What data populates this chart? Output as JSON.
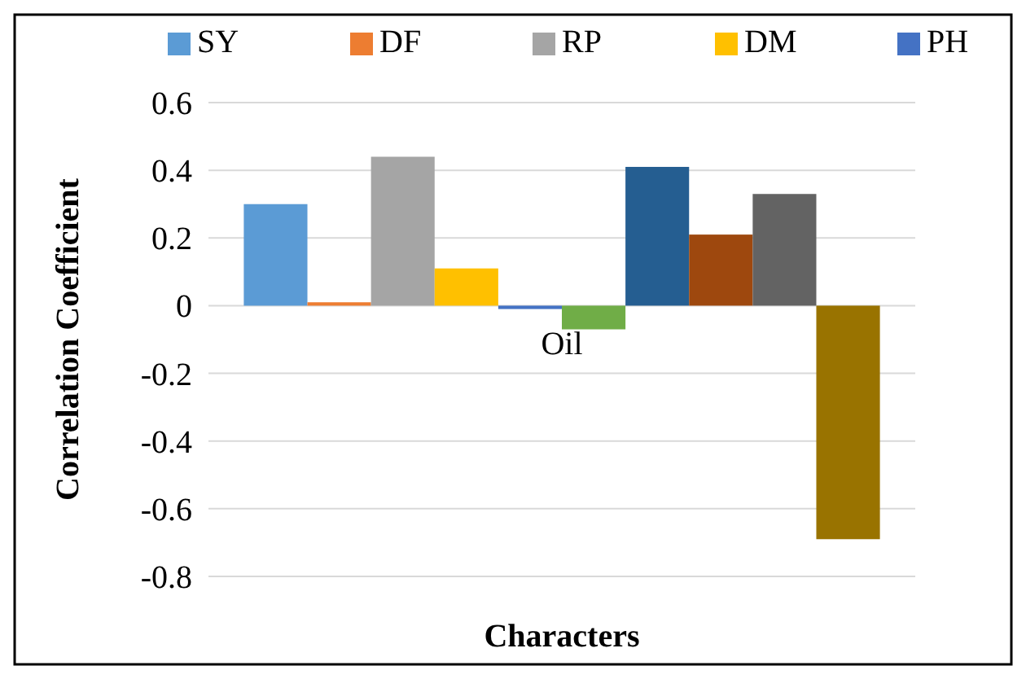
{
  "chart_data": {
    "type": "bar",
    "xlabel": "Characters",
    "ylabel": "Correlation Coefficient",
    "categories": [
      "Oil"
    ],
    "series": [
      {
        "name": "SY",
        "color": "#5b9bd5",
        "values": [
          0.3
        ]
      },
      {
        "name": "DF",
        "color": "#ed7d31",
        "values": [
          0.01
        ]
      },
      {
        "name": "RP",
        "color": "#a5a5a5",
        "values": [
          0.44
        ]
      },
      {
        "name": "DM",
        "color": "#ffc000",
        "values": [
          0.11
        ]
      },
      {
        "name": "PH",
        "color": "#4472c4",
        "values": [
          -0.01
        ]
      },
      {
        "color": "#70ad47",
        "values": [
          -0.07
        ]
      },
      {
        "color": "#255e91",
        "values": [
          0.41
        ]
      },
      {
        "color": "#9e480e",
        "values": [
          0.21
        ]
      },
      {
        "color": "#636363",
        "values": [
          0.33
        ]
      },
      {
        "color": "#997300",
        "values": [
          -0.69
        ]
      }
    ],
    "ylim": [
      -0.8,
      0.6
    ],
    "yticks": [
      -0.8,
      -0.6,
      -0.4,
      -0.2,
      0,
      0.2,
      0.4,
      0.6
    ],
    "grid": "y",
    "legend": "top"
  }
}
